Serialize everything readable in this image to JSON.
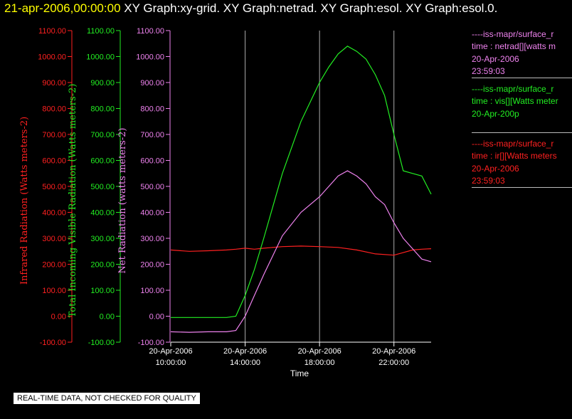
{
  "header": {
    "date": "21-apr-2006,00:00:00",
    "titles": "XY Graph:xy-grid.  XY Graph:netrad.  XY Graph:esol.  XY Graph:esol.0."
  },
  "colors": {
    "ir": "#ff2020",
    "vis": "#22ee22",
    "net": "#ee82ee",
    "axis": "#ffffff",
    "grid": "#aaaaaa"
  },
  "chart_data": {
    "type": "line",
    "xlabel": "Time",
    "x_ticks": [
      {
        "l1": "20-Apr-2006",
        "l2": "10:00:00",
        "h": 10
      },
      {
        "l1": "20-Apr-2006",
        "l2": "14:00:00",
        "h": 14
      },
      {
        "l1": "20-Apr-2006",
        "l2": "18:00:00",
        "h": 18
      },
      {
        "l1": "20-Apr-2006",
        "l2": "22:00:00",
        "h": 22
      }
    ],
    "xlim_hours": [
      10,
      24
    ],
    "axes": [
      {
        "id": "ir",
        "label": "Infrared Radiation (Watts meters-2)",
        "ticks": [
          "1100.00",
          "1000.00",
          "900.00",
          "800.00",
          "700.00",
          "600.00",
          "500.00",
          "400.00",
          "300.00",
          "200.00",
          "100.00",
          "0.00",
          "-100.00"
        ],
        "ylim": [
          -100,
          1100
        ]
      },
      {
        "id": "vis",
        "label": "Total Incoming Visible Radiation (Watts meters-2)",
        "ticks": [
          "1100.00",
          "1000.00",
          "900.00",
          "800.00",
          "700.00",
          "600.00",
          "500.00",
          "400.00",
          "300.00",
          "200.00",
          "100.00",
          "0.00",
          "-100.00"
        ],
        "ylim": [
          -100,
          1100
        ]
      },
      {
        "id": "net",
        "label": "Net Radiation (watts meters-2)",
        "ticks": [
          "1100.00",
          "1000.00",
          "900.00",
          "800.00",
          "700.00",
          "600.00",
          "500.00",
          "400.00",
          "300.00",
          "200.00",
          "100.00",
          "0.00",
          "-100.00"
        ],
        "ylim": [
          -100,
          1100
        ]
      }
    ],
    "grid": true,
    "series": [
      {
        "name": "ir",
        "axis": "ir",
        "x": [
          10,
          11,
          12,
          13,
          13.5,
          14,
          14.5,
          15,
          16,
          17,
          18,
          19,
          20,
          21,
          22,
          22.5,
          23,
          23.5,
          24
        ],
        "y": [
          255,
          250,
          252,
          255,
          258,
          262,
          258,
          262,
          268,
          270,
          268,
          265,
          255,
          240,
          235,
          245,
          255,
          258,
          260
        ]
      },
      {
        "name": "vis",
        "axis": "vis",
        "x": [
          10,
          11,
          12,
          13,
          13.5,
          14,
          14.5,
          15,
          16,
          17,
          18,
          18.5,
          19,
          19.5,
          20,
          20.5,
          21,
          21.5,
          22,
          22.5,
          23,
          23.5,
          24
        ],
        "y": [
          -5,
          -5,
          -5,
          -5,
          0,
          80,
          180,
          300,
          550,
          750,
          900,
          960,
          1010,
          1040,
          1020,
          990,
          930,
          850,
          700,
          560,
          550,
          540,
          470
        ]
      },
      {
        "name": "net",
        "axis": "net",
        "x": [
          10,
          11,
          12,
          13,
          13.5,
          14,
          14.5,
          15,
          16,
          17,
          18,
          18.5,
          19,
          19.5,
          20,
          20.5,
          21,
          21.5,
          22,
          22.5,
          23,
          23.5,
          24
        ],
        "y": [
          -60,
          -62,
          -60,
          -60,
          -55,
          0,
          80,
          160,
          310,
          400,
          460,
          500,
          540,
          560,
          540,
          510,
          460,
          430,
          360,
          300,
          260,
          220,
          210
        ]
      }
    ]
  },
  "legend": [
    {
      "color": "#ee82ee",
      "lines": [
        "----iss-mapr/surface_r",
        "time : netrad[][watts m",
        "20-Apr-2006",
        "23:59:03"
      ]
    },
    {
      "color": "#22ee22",
      "lines": [
        "----iss-mapr/surface_r",
        "time : vis[][Watts meter",
        "20-Apr-200p"
      ]
    },
    {
      "color": "#ff2020",
      "lines": [
        "----iss-mapr/surface_r",
        "time : ir[][Watts meters",
        "20-Apr-2006",
        "23:59:03"
      ]
    }
  ],
  "notice": "REAL-TIME DATA, NOT CHECKED FOR QUALITY"
}
